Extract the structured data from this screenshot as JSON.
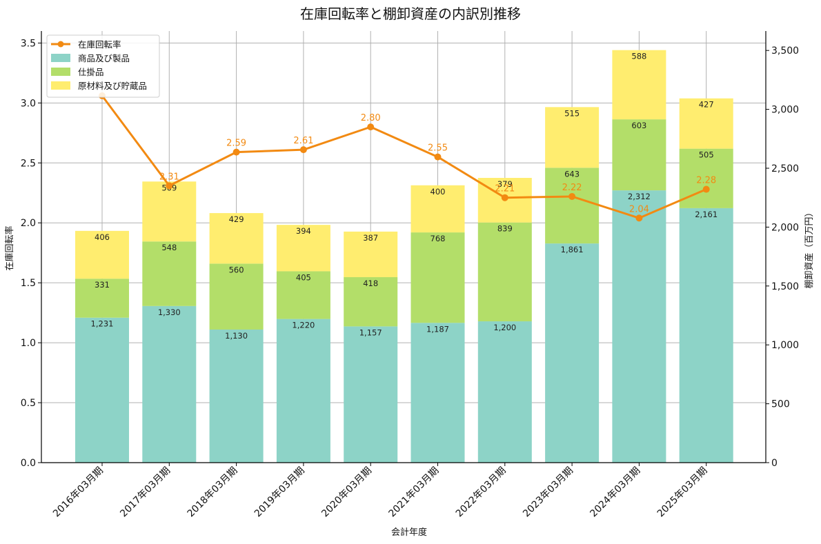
{
  "chart_data": {
    "type": "bar",
    "title": "在庫回転率と棚卸資産の内訳別推移",
    "xlabel": "会計年度",
    "ylabel_left": "在庫回転率",
    "ylabel_right": "棚卸資産（百万円）",
    "categories": [
      "2016年03月期",
      "2017年03月期",
      "2018年03月期",
      "2019年03月期",
      "2020年03月期",
      "2021年03月期",
      "2022年03月期",
      "2023年03月期",
      "2024年03月期",
      "2025年03月期"
    ],
    "series": [
      {
        "name": "商品及び製品",
        "kind": "bar",
        "axis": "right",
        "color": "#8dd3c7",
        "values": [
          1231,
          1330,
          1130,
          1220,
          1157,
          1187,
          1200,
          1861,
          2312,
          2161
        ],
        "labels": [
          "1,231",
          "1,330",
          "1,130",
          "1,220",
          "1,157",
          "1,187",
          "1,200",
          "1,861",
          "2,312",
          "2,161"
        ]
      },
      {
        "name": "仕掛品",
        "kind": "bar",
        "axis": "right",
        "color": "#b3de69",
        "values": [
          331,
          548,
          560,
          405,
          418,
          768,
          839,
          643,
          603,
          505
        ],
        "labels": [
          "331",
          "548",
          "560",
          "405",
          "418",
          "768",
          "839",
          "643",
          "603",
          "505"
        ]
      },
      {
        "name": "原材料及び貯蔵品",
        "kind": "bar",
        "axis": "right",
        "color": "#ffed6f",
        "values": [
          406,
          509,
          429,
          394,
          387,
          400,
          379,
          515,
          588,
          427
        ],
        "labels": [
          "406",
          "509",
          "429",
          "394",
          "387",
          "400",
          "379",
          "515",
          "588",
          "427"
        ]
      },
      {
        "name": "在庫回転率",
        "kind": "line",
        "axis": "left",
        "color": "#f28a12",
        "values": [
          3.06,
          2.31,
          2.59,
          2.61,
          2.8,
          2.55,
          2.21,
          2.22,
          2.04,
          2.28
        ],
        "labels": [
          "",
          "2.31",
          "2.59",
          "2.61",
          "2.80",
          "2.55",
          "2.21",
          "2.22",
          "2.04",
          "2.28"
        ]
      }
    ],
    "ylim_left": [
      0,
      3.6
    ],
    "yticks_left": [
      "0.0",
      "0.5",
      "1.0",
      "1.5",
      "2.0",
      "2.5",
      "3.0",
      "3.5"
    ],
    "ylim_right": [
      0,
      3665
    ],
    "yticks_right": [
      "0",
      "500",
      "1,000",
      "1,500",
      "2,000",
      "2,500",
      "3,000",
      "3,500"
    ],
    "grid": true,
    "legend_position": "top-left",
    "legend_order": [
      "在庫回転率",
      "商品及び製品",
      "仕掛品",
      "原材料及び貯蔵品"
    ]
  }
}
